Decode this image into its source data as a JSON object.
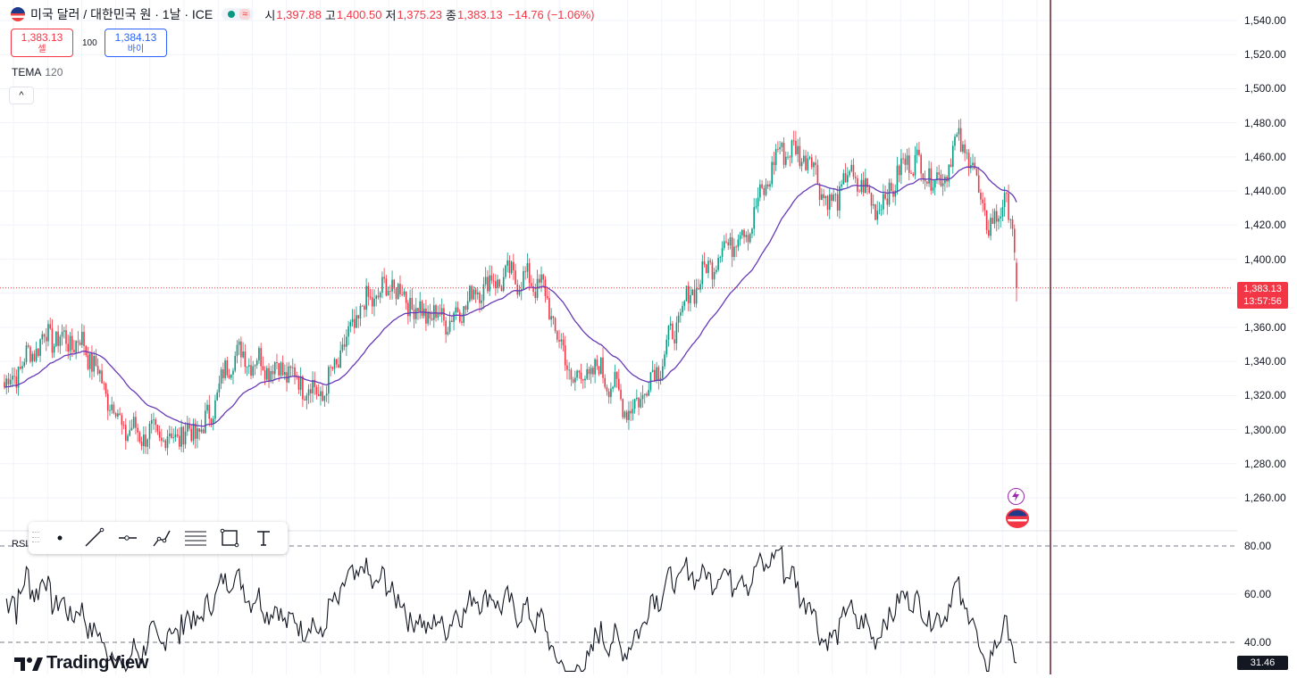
{
  "header": {
    "symbol_title": "미국 달러 / 대한민국 원 · 1날 · ICE",
    "ohlc": [
      {
        "label": "시",
        "value": "1,397.88"
      },
      {
        "label": "고",
        "value": "1,400.50"
      },
      {
        "label": "저",
        "value": "1,375.23"
      },
      {
        "label": "종",
        "value": "1,383.13"
      }
    ],
    "change": "−14.76 (−1.06%)"
  },
  "trade": {
    "sell_price": "1,383.13",
    "sell_label": "셀",
    "quantity": "100",
    "buy_price": "1,384.13",
    "buy_label": "바이"
  },
  "indicators": {
    "tema_name": "TEMA",
    "tema_value": "120",
    "collapse_icon": "^",
    "rsi_name": "RSI"
  },
  "price_axis": {
    "labels": [
      "1,540.00",
      "1,520.00",
      "1,500.00",
      "1,480.00",
      "1,460.00",
      "1,440.00",
      "1,420.00",
      "1,400.00",
      "1,360.00",
      "1,340.00",
      "1,320.00",
      "1,300.00",
      "1,280.00",
      "1,260.00"
    ],
    "current_price": "1,383.13",
    "countdown": "13:57:56"
  },
  "rsi_axis": {
    "labels": [
      "80.00",
      "60.00",
      "40.00"
    ],
    "current_value": "31.46"
  },
  "toolbar": {
    "tools": [
      "dot-icon",
      "trend-line-icon",
      "horizontal-ray-icon",
      "path-icon",
      "fib-retracement-icon",
      "rectangle-icon",
      "text-icon"
    ]
  },
  "branding": {
    "logo_text": "TradingView"
  },
  "colors": {
    "up": "#089981",
    "down": "#f23645",
    "tema": "#673ab7",
    "rsi": "#131722",
    "cursor_line": "#6b1d2e"
  },
  "chart_data": {
    "type": "candlestick",
    "title": "미국 달러 / 대한민국 원",
    "interval": "1날",
    "ylim": [
      1250,
      1545
    ],
    "key_points": [
      {
        "i": 0,
        "price": 1325
      },
      {
        "i": 20,
        "price": 1355
      },
      {
        "i": 40,
        "price": 1350
      },
      {
        "i": 60,
        "price": 1300
      },
      {
        "i": 80,
        "price": 1295
      },
      {
        "i": 100,
        "price": 1300
      },
      {
        "i": 115,
        "price": 1345
      },
      {
        "i": 140,
        "price": 1335
      },
      {
        "i": 160,
        "price": 1320
      },
      {
        "i": 180,
        "price": 1372
      },
      {
        "i": 195,
        "price": 1385
      },
      {
        "i": 210,
        "price": 1368
      },
      {
        "i": 225,
        "price": 1365
      },
      {
        "i": 240,
        "price": 1385
      },
      {
        "i": 255,
        "price": 1390
      },
      {
        "i": 270,
        "price": 1385
      },
      {
        "i": 285,
        "price": 1330
      },
      {
        "i": 300,
        "price": 1335
      },
      {
        "i": 315,
        "price": 1310
      },
      {
        "i": 330,
        "price": 1340
      },
      {
        "i": 345,
        "price": 1380
      },
      {
        "i": 360,
        "price": 1405
      },
      {
        "i": 375,
        "price": 1420
      },
      {
        "i": 390,
        "price": 1465
      },
      {
        "i": 405,
        "price": 1460
      },
      {
        "i": 415,
        "price": 1430
      },
      {
        "i": 425,
        "price": 1450
      },
      {
        "i": 440,
        "price": 1430
      },
      {
        "i": 455,
        "price": 1460
      },
      {
        "i": 470,
        "price": 1445
      },
      {
        "i": 480,
        "price": 1470
      },
      {
        "i": 487,
        "price": 1455
      },
      {
        "i": 495,
        "price": 1415
      },
      {
        "i": 502,
        "price": 1435
      },
      {
        "i": 507,
        "price": 1420
      },
      {
        "i": 509,
        "price": 1383.13
      }
    ],
    "last": {
      "open": 1397.88,
      "high": 1400.5,
      "low": 1375.23,
      "close": 1383.13
    },
    "tema_period": 120,
    "rsi_levels": [
      80,
      40
    ],
    "rsi_last": 31.46
  }
}
